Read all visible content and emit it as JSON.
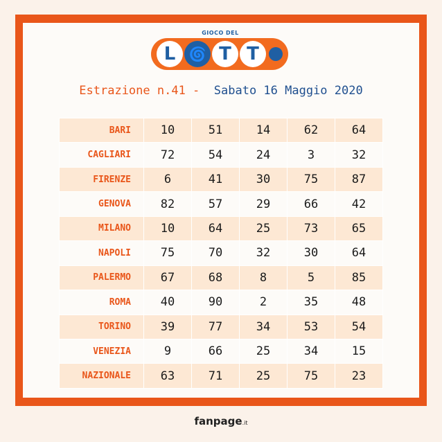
{
  "logo": {
    "top_text": "GIOCO DEL",
    "word": "LOTTO"
  },
  "header": {
    "left": "Estrazione n.41 -",
    "right": "Sabato 16 Maggio 2020"
  },
  "results": [
    {
      "city": "BARI",
      "numbers": [
        10,
        51,
        14,
        62,
        64
      ]
    },
    {
      "city": "CAGLIARI",
      "numbers": [
        72,
        54,
        24,
        3,
        32
      ]
    },
    {
      "city": "FIRENZE",
      "numbers": [
        6,
        41,
        30,
        75,
        87
      ]
    },
    {
      "city": "GENOVA",
      "numbers": [
        82,
        57,
        29,
        66,
        42
      ]
    },
    {
      "city": "MILANO",
      "numbers": [
        10,
        64,
        25,
        73,
        65
      ]
    },
    {
      "city": "NAPOLI",
      "numbers": [
        75,
        70,
        32,
        30,
        64
      ]
    },
    {
      "city": "PALERMO",
      "numbers": [
        67,
        68,
        8,
        5,
        85
      ]
    },
    {
      "city": "ROMA",
      "numbers": [
        40,
        90,
        2,
        35,
        48
      ]
    },
    {
      "city": "TORINO",
      "numbers": [
        39,
        77,
        34,
        53,
        54
      ]
    },
    {
      "city": "VENEZIA",
      "numbers": [
        9,
        66,
        25,
        34,
        15
      ]
    },
    {
      "city": "NAZIONALE",
      "numbers": [
        63,
        71,
        25,
        75,
        23
      ]
    }
  ],
  "footer": {
    "brand": "fanpage",
    "suffix": ".it"
  },
  "colors": {
    "accent": "#e9561a",
    "blue": "#1f4f8f",
    "row_alt": "#fde8d4"
  }
}
